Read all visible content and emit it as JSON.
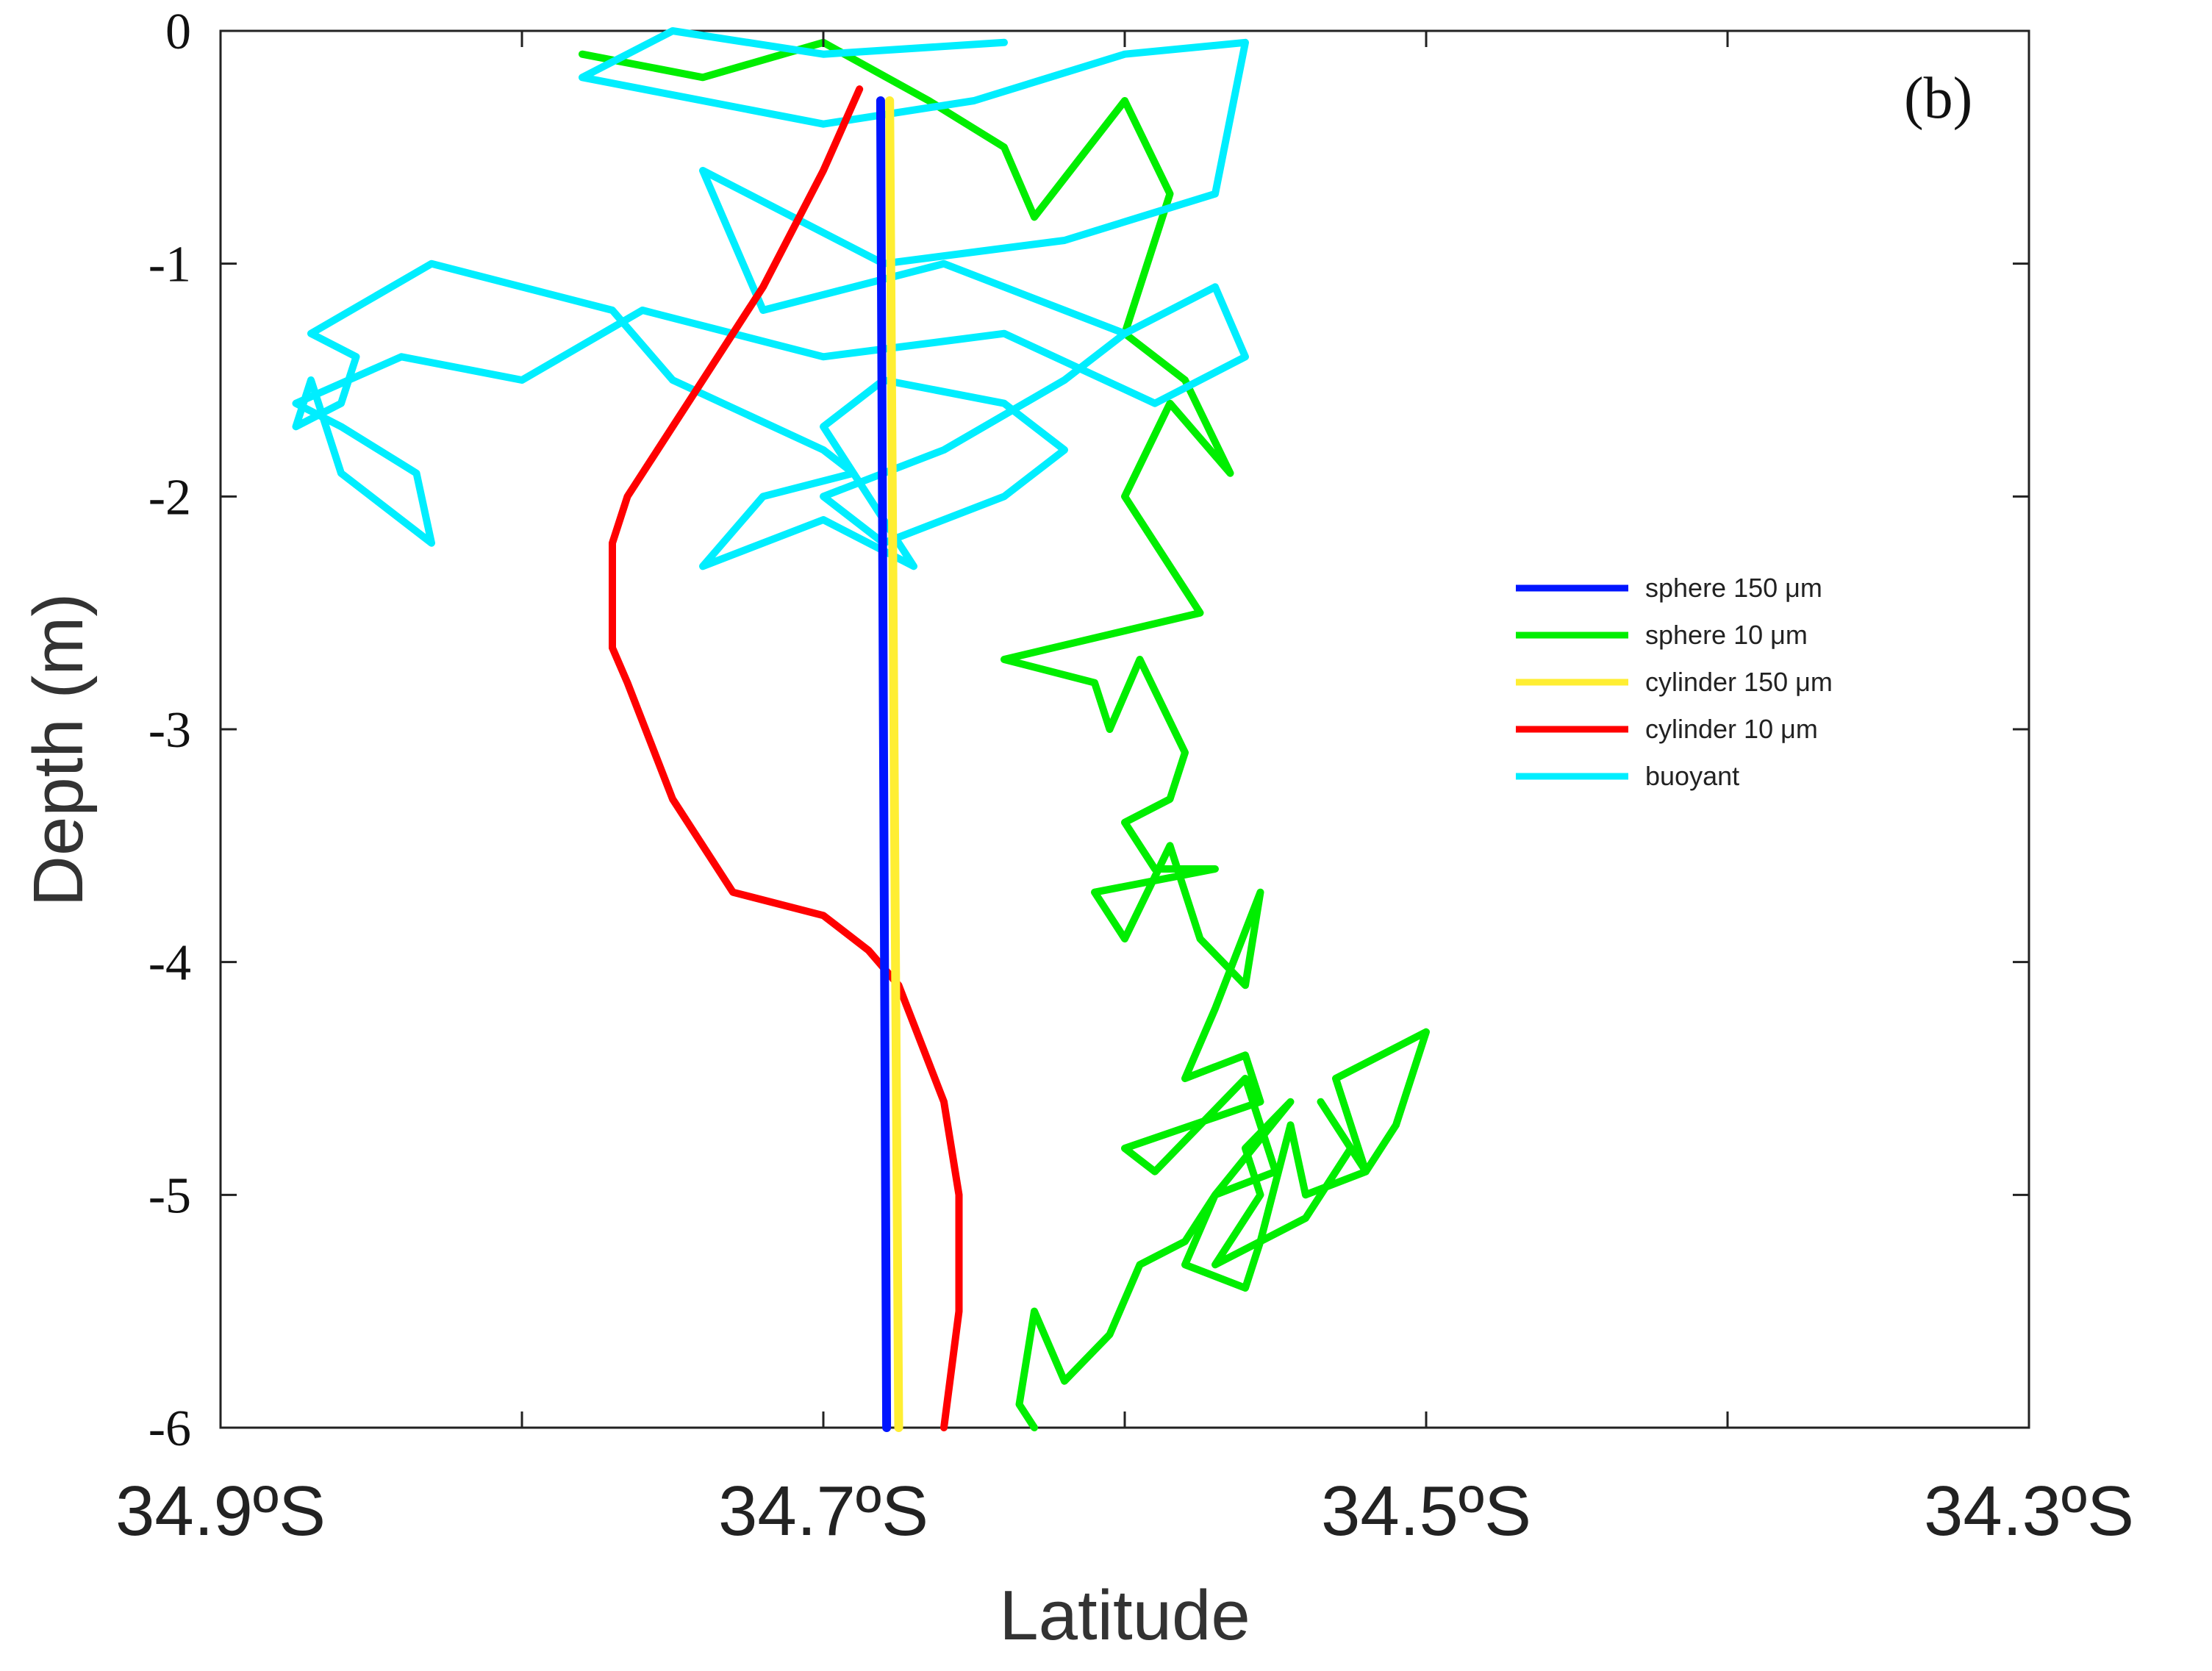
{
  "chart_data": {
    "type": "line",
    "panel_label": "(b)",
    "xlabel": "Latitude",
    "ylabel": "Depth (m)",
    "xlim": [
      34.9,
      34.3
    ],
    "ylim": [
      -6,
      0
    ],
    "x_ticks": [
      34.9,
      34.8,
      34.7,
      34.6,
      34.5,
      34.4,
      34.3
    ],
    "x_tick_labels": [
      "34.9ºS",
      "",
      "34.7ºS",
      "",
      "34.5ºS",
      "",
      "34.3ºS"
    ],
    "y_ticks": [
      0,
      -1,
      -2,
      -3,
      -4,
      -5,
      -6
    ],
    "y_tick_labels": [
      "0",
      "-1",
      "-2",
      "-3",
      "-4",
      "-5",
      "-6"
    ],
    "grid": false,
    "legend_position": "right",
    "series": [
      {
        "name": "sphere 150 μm",
        "color": "#0015ff",
        "x": [
          34.681,
          34.679
        ],
        "y": [
          -0.3,
          -6.0
        ]
      },
      {
        "name": "sphere 10 μm",
        "color": "#00ee00",
        "x": [
          34.78,
          34.74,
          34.7,
          34.665,
          34.64,
          34.63,
          34.6,
          34.585,
          34.6,
          34.58,
          34.565,
          34.585,
          34.6,
          34.58,
          34.575,
          34.64,
          34.61,
          34.605,
          34.595,
          34.58,
          34.585,
          34.6,
          34.59,
          34.57,
          34.61,
          34.6,
          34.585,
          34.575,
          34.56,
          34.555,
          34.57,
          34.58,
          34.56,
          34.555,
          34.6,
          34.59,
          34.56,
          34.55,
          34.57,
          34.545,
          34.56,
          34.555,
          34.57,
          34.54,
          34.525,
          34.535,
          34.52,
          34.51,
          34.5,
          34.53,
          34.52,
          34.54,
          34.545,
          34.555,
          34.56,
          34.58,
          34.57,
          34.58,
          34.595,
          34.605,
          34.62,
          34.63,
          34.635,
          34.63
        ],
        "y": [
          -0.1,
          -0.2,
          -0.05,
          -0.3,
          -0.5,
          -0.8,
          -0.3,
          -0.7,
          -1.3,
          -1.5,
          -1.9,
          -1.6,
          -2.0,
          -2.4,
          -2.5,
          -2.7,
          -2.8,
          -3.0,
          -2.7,
          -3.1,
          -3.3,
          -3.4,
          -3.6,
          -3.6,
          -3.7,
          -3.9,
          -3.5,
          -3.9,
          -4.1,
          -3.7,
          -4.2,
          -4.5,
          -4.4,
          -4.6,
          -4.8,
          -4.9,
          -4.5,
          -4.9,
          -5.0,
          -4.6,
          -4.8,
          -5.0,
          -5.3,
          -5.1,
          -4.8,
          -4.6,
          -4.9,
          -4.7,
          -4.3,
          -4.5,
          -4.9,
          -5.0,
          -4.7,
          -5.2,
          -5.4,
          -5.3,
          -5.0,
          -5.2,
          -5.3,
          -5.6,
          -5.8,
          -5.5,
          -5.9,
          -6.0
        ]
      },
      {
        "name": "cylinder 150 μm",
        "color": "#ffee33",
        "x": [
          34.678,
          34.675
        ],
        "y": [
          -0.3,
          -6.0
        ]
      },
      {
        "name": "cylinder 10 μm",
        "color": "#ff0000",
        "x": [
          34.688,
          34.7,
          34.72,
          34.745,
          34.765,
          34.77,
          34.77,
          34.765,
          34.75,
          34.73,
          34.7,
          34.685,
          34.675,
          34.66,
          34.655,
          34.655,
          34.66
        ],
        "y": [
          -0.25,
          -0.6,
          -1.1,
          -1.6,
          -2.0,
          -2.2,
          -2.65,
          -2.8,
          -3.3,
          -3.7,
          -3.8,
          -3.95,
          -4.1,
          -4.6,
          -5.0,
          -5.5,
          -6.0
        ]
      },
      {
        "name": "buoyant",
        "color": "#00eeff",
        "x": [
          34.64,
          34.7,
          34.75,
          34.78,
          34.7,
          34.65,
          34.6,
          34.56,
          34.57,
          34.62,
          34.68,
          34.74,
          34.72,
          34.66,
          34.6,
          34.57,
          34.56,
          34.59,
          34.64,
          34.7,
          34.76,
          34.8,
          34.84,
          34.875,
          34.86,
          34.835,
          34.83,
          34.86,
          34.87,
          34.875,
          34.86,
          34.855,
          34.87,
          34.83,
          34.77,
          34.75,
          34.7,
          34.69,
          34.72,
          34.74,
          34.7,
          34.67,
          34.7,
          34.68,
          34.64,
          34.62,
          34.64,
          34.68,
          34.7,
          34.66,
          34.62,
          34.6
        ],
        "y": [
          -0.05,
          -0.1,
          -0.0,
          -0.2,
          -0.4,
          -0.3,
          -0.1,
          -0.05,
          -0.7,
          -0.9,
          -1.0,
          -0.6,
          -1.2,
          -1.0,
          -1.3,
          -1.1,
          -1.4,
          -1.6,
          -1.3,
          -1.4,
          -1.2,
          -1.5,
          -1.4,
          -1.6,
          -1.7,
          -1.9,
          -2.2,
          -1.9,
          -1.5,
          -1.7,
          -1.6,
          -1.4,
          -1.3,
          -1.0,
          -1.2,
          -1.5,
          -1.8,
          -1.9,
          -2.0,
          -2.3,
          -2.1,
          -2.3,
          -1.7,
          -1.5,
          -1.6,
          -1.8,
          -2.0,
          -2.2,
          -2.0,
          -1.8,
          -1.5,
          -1.3
        ]
      }
    ]
  }
}
